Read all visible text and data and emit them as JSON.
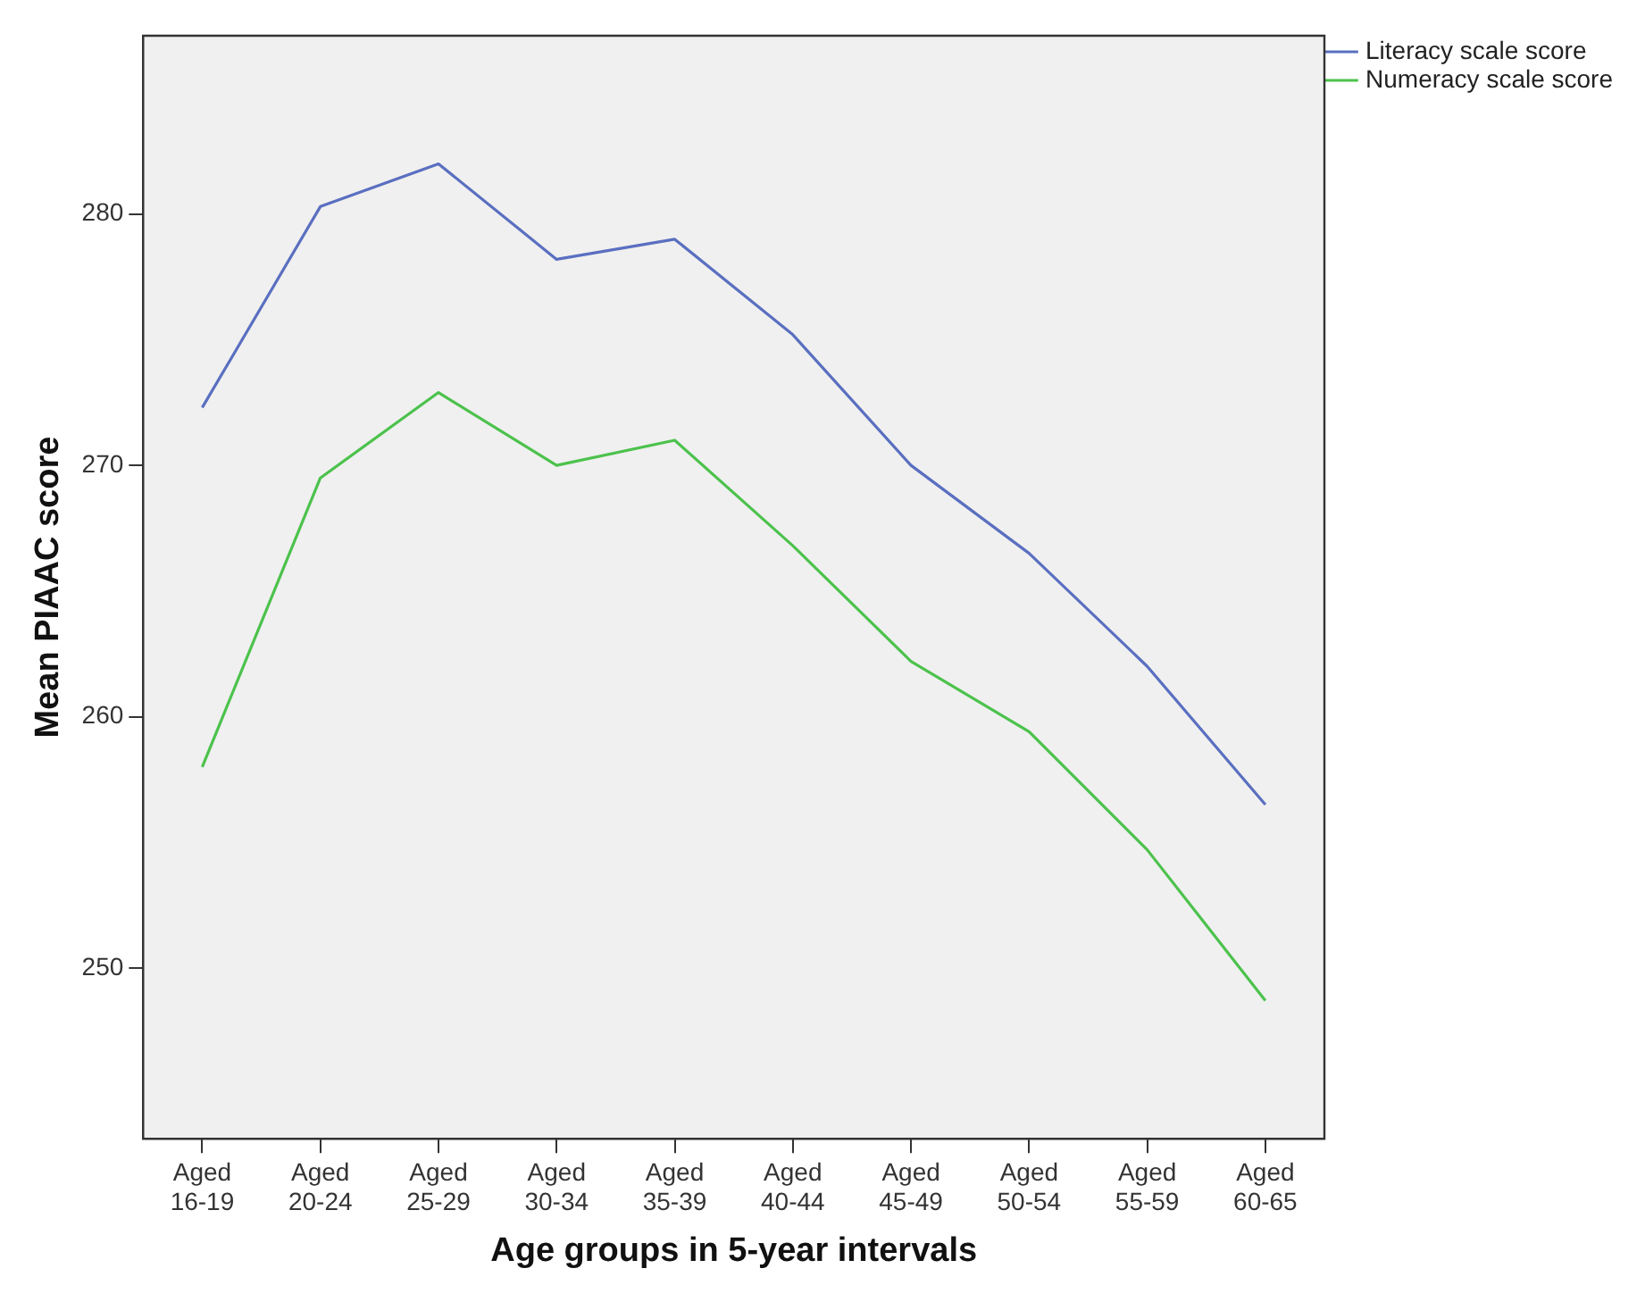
{
  "chart_data": {
    "type": "line",
    "xlabel": "Age groups in 5-year intervals",
    "ylabel": "Mean PIAAC score",
    "categories": [
      "Aged 16-19",
      "Aged 20-24",
      "Aged 25-29",
      "Aged 30-34",
      "Aged 35-39",
      "Aged 40-44",
      "Aged 45-49",
      "Aged 50-54",
      "Aged 55-59",
      "Aged 60-65"
    ],
    "series": [
      {
        "name": "Literacy scale score",
        "color": "#5a6fc0",
        "values": [
          272.3,
          280.3,
          282.0,
          278.2,
          279.0,
          275.2,
          270.0,
          266.5,
          262.0,
          256.5
        ]
      },
      {
        "name": "Numeracy scale score",
        "color": "#4cc24c",
        "values": [
          258.0,
          269.5,
          272.9,
          270.0,
          271.0,
          266.8,
          262.2,
          259.4,
          254.7,
          248.7
        ]
      }
    ],
    "ylim": [
      243.2,
      287.1
    ],
    "yticks": [
      250,
      260,
      270,
      280
    ],
    "grid": false,
    "legend": "top right",
    "marker": "none",
    "line_style": "solid"
  }
}
